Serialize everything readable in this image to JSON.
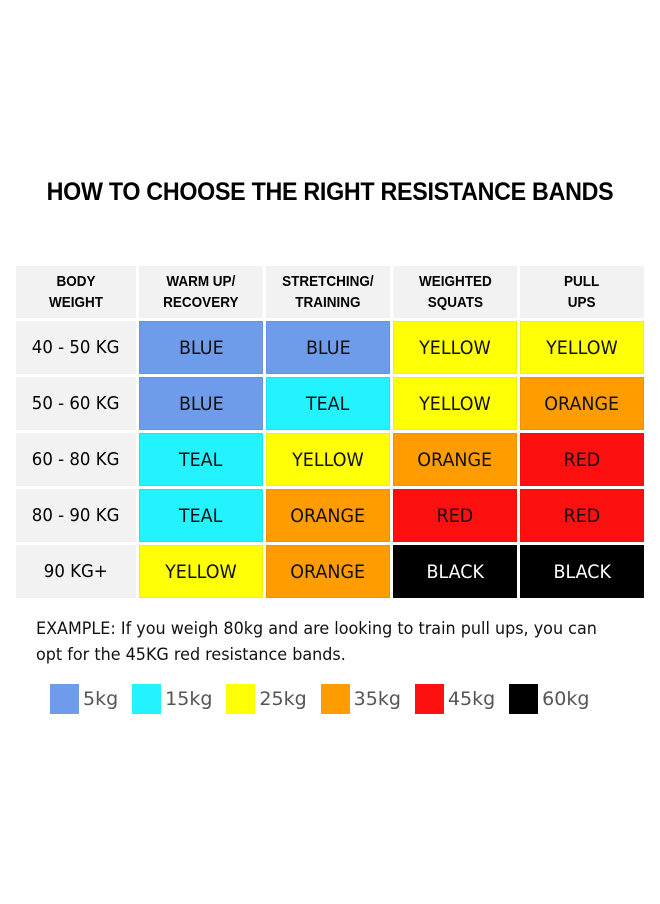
{
  "title": "HOW TO CHOOSE THE RIGHT RESISTANCE BANDS",
  "table": {
    "headers": [
      "BODY\nWEIGHT",
      "WARM UP/\nRECOVERY",
      "STRETCHING/\nTRAINING",
      "WEIGHTED\nSQUATS",
      "PULL\nUPS"
    ],
    "rows": [
      {
        "weight": "40 - 50 KG",
        "cells": [
          {
            "text": "BLUE",
            "color": "#6f9cea"
          },
          {
            "text": "BLUE",
            "color": "#6f9cea"
          },
          {
            "text": "YELLOW",
            "color": "#ffff05"
          },
          {
            "text": "YELLOW",
            "color": "#ffff05"
          }
        ]
      },
      {
        "weight": "50 - 60 KG",
        "cells": [
          {
            "text": "BLUE",
            "color": "#6f9cea"
          },
          {
            "text": "TEAL",
            "color": "#22f3ff"
          },
          {
            "text": "YELLOW",
            "color": "#ffff05"
          },
          {
            "text": "ORANGE",
            "color": "#ff9c00"
          }
        ]
      },
      {
        "weight": "60 - 80 KG",
        "cells": [
          {
            "text": "TEAL",
            "color": "#22f3ff"
          },
          {
            "text": "YELLOW",
            "color": "#ffff05"
          },
          {
            "text": "ORANGE",
            "color": "#ff9c00"
          },
          {
            "text": "RED",
            "color": "#ff1010"
          }
        ]
      },
      {
        "weight": "80 - 90 KG",
        "cells": [
          {
            "text": "TEAL",
            "color": "#22f3ff"
          },
          {
            "text": "ORANGE",
            "color": "#ff9c00"
          },
          {
            "text": "RED",
            "color": "#ff1010"
          },
          {
            "text": "RED",
            "color": "#ff1010"
          }
        ]
      },
      {
        "weight": "90 KG+",
        "cells": [
          {
            "text": "YELLOW",
            "color": "#ffff05"
          },
          {
            "text": "ORANGE",
            "color": "#ff9c00"
          },
          {
            "text": "BLACK",
            "color": "#000000"
          },
          {
            "text": "BLACK",
            "color": "#000000"
          }
        ]
      }
    ]
  },
  "example": "EXAMPLE: If you weigh 80kg and are looking to train pull ups, you can opt for the 45KG red resistance bands.",
  "legend": [
    {
      "label": "5kg",
      "color": "#6f9cea"
    },
    {
      "label": "15kg",
      "color": "#22f3ff"
    },
    {
      "label": "25kg",
      "color": "#ffff05"
    },
    {
      "label": "35kg",
      "color": "#ff9c00"
    },
    {
      "label": "45kg",
      "color": "#ff1010"
    },
    {
      "label": "60kg",
      "color": "#000000"
    }
  ]
}
